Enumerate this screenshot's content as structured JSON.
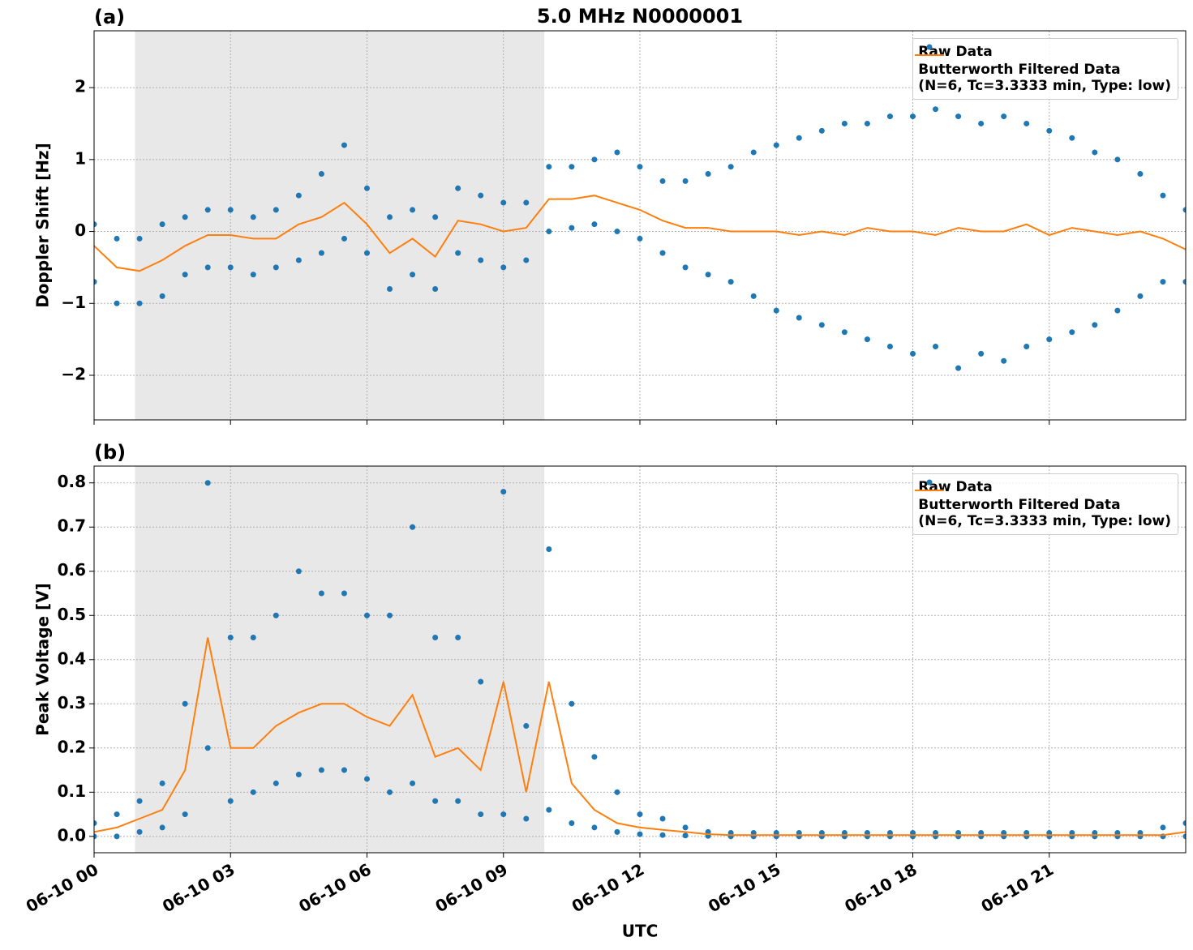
{
  "chart_data": [
    {
      "type": "line",
      "title": "5.0 MHz N0000001",
      "panel_label": "(a)",
      "ylabel": "Doppler Shift [Hz]",
      "xlim": [
        0,
        24
      ],
      "xticks": [
        0,
        3,
        6,
        9,
        12,
        15,
        18,
        21
      ],
      "ylim": [
        -2.62,
        2.79
      ],
      "yticks": [
        {
          "value": -2,
          "label": "−2"
        },
        {
          "value": -1,
          "label": "−1"
        },
        0,
        1,
        2
      ],
      "grid": true,
      "legend": "upper right",
      "shaded_span": [
        0.9,
        9.9
      ],
      "series": [
        {
          "name": "Raw Data",
          "color": "#1f77b4",
          "style": "points",
          "x": [
            0,
            0,
            0.5,
            0.5,
            1,
            1,
            1.5,
            1.5,
            2,
            2,
            2.5,
            2.5,
            3,
            3,
            3.5,
            3.5,
            4,
            4,
            4.5,
            4.5,
            5,
            5,
            5.5,
            5.5,
            6,
            6,
            6.5,
            6.5,
            7,
            7,
            7.5,
            7.5,
            8,
            8,
            8.5,
            8.5,
            9,
            9,
            9.5,
            9.5,
            10,
            10,
            10.5,
            10.5,
            11,
            11,
            11.5,
            11.5,
            12,
            12,
            12.5,
            12.5,
            13,
            13,
            13.5,
            13.5,
            14,
            14,
            14.5,
            14.5,
            15,
            15,
            15.5,
            15.5,
            16,
            16,
            16.5,
            16.5,
            17,
            17,
            17.5,
            17.5,
            18,
            18,
            18.5,
            18.5,
            19,
            19,
            19.5,
            19.5,
            20,
            20,
            20.5,
            20.5,
            21,
            21,
            21.5,
            21.5,
            22,
            22,
            22.5,
            22.5,
            23,
            23,
            23.5,
            23.5,
            24,
            24
          ],
          "values": [
            0.1,
            -0.7,
            -0.1,
            -1.0,
            -0.1,
            -1.0,
            0.1,
            -0.9,
            0.2,
            -0.6,
            0.3,
            -0.5,
            0.3,
            -0.5,
            0.2,
            -0.6,
            0.3,
            -0.5,
            0.5,
            -0.4,
            0.8,
            -0.3,
            1.2,
            -0.1,
            0.6,
            -0.3,
            0.2,
            -0.8,
            0.3,
            -0.6,
            0.2,
            -0.8,
            0.6,
            -0.3,
            0.5,
            -0.4,
            0.4,
            -0.5,
            0.4,
            -0.4,
            0.9,
            0,
            0.9,
            0.05,
            1.0,
            0.1,
            1.1,
            0,
            0.9,
            -0.1,
            0.7,
            -0.3,
            0.7,
            -0.5,
            0.8,
            -0.6,
            0.9,
            -0.7,
            1.1,
            -0.9,
            1.2,
            -1.1,
            1.3,
            -1.2,
            1.4,
            -1.3,
            1.5,
            -1.4,
            1.5,
            -1.5,
            1.6,
            -1.6,
            1.6,
            -1.7,
            1.7,
            -1.6,
            1.6,
            -1.9,
            1.5,
            -1.7,
            1.6,
            -1.8,
            1.5,
            -1.6,
            1.4,
            -1.5,
            1.3,
            -1.4,
            1.1,
            -1.3,
            1.0,
            -1.1,
            0.8,
            -0.9,
            0.5,
            -0.7,
            0.3,
            -0.7
          ]
        },
        {
          "name": "Butterworth Filtered Data\n(N=6, Tc=3.3333 min, Type: low)",
          "color": "#ff7f0e",
          "style": "line",
          "x": [
            0,
            0.5,
            1,
            1.5,
            2,
            2.5,
            3,
            3.5,
            4,
            4.5,
            5,
            5.5,
            6,
            6.5,
            7,
            7.5,
            8,
            8.5,
            9,
            9.5,
            10,
            10.5,
            11,
            11.5,
            12,
            12.5,
            13,
            13.5,
            14,
            14.5,
            15,
            15.5,
            16,
            16.5,
            17,
            17.5,
            18,
            18.5,
            19,
            19.5,
            20,
            20.5,
            21,
            21.5,
            22,
            22.5,
            23,
            23.5,
            24
          ],
          "values": [
            -0.2,
            -0.5,
            -0.55,
            -0.4,
            -0.2,
            -0.05,
            -0.05,
            -0.1,
            -0.1,
            0.1,
            0.2,
            0.4,
            0.1,
            -0.3,
            -0.1,
            -0.35,
            0.15,
            0.1,
            0,
            0.05,
            0.45,
            0.45,
            0.5,
            0.4,
            0.3,
            0.15,
            0.05,
            0.05,
            0,
            0,
            0,
            -0.05,
            0,
            -0.05,
            0.05,
            0,
            0,
            -0.05,
            0.05,
            0,
            0,
            0.1,
            -0.05,
            0.05,
            0,
            -0.05,
            0,
            -0.1,
            -0.25
          ]
        }
      ]
    },
    {
      "type": "line",
      "panel_label": "(b)",
      "ylabel": "Peak Voltage [V]",
      "xlabel": "UTC",
      "xlim": [
        0,
        24
      ],
      "xticks": [
        {
          "value": 0,
          "label": "06-10 00"
        },
        {
          "value": 3,
          "label": "06-10 03"
        },
        {
          "value": 6,
          "label": "06-10 06"
        },
        {
          "value": 9,
          "label": "06-10 09"
        },
        {
          "value": 12,
          "label": "06-10 12"
        },
        {
          "value": 15,
          "label": "06-10 15"
        },
        {
          "value": 18,
          "label": "06-10 18"
        },
        {
          "value": 21,
          "label": "06-10 21"
        }
      ],
      "ylim": [
        -0.037,
        0.838
      ],
      "yticks": [
        {
          "value": 0,
          "label": "0.0"
        },
        0.1,
        0.2,
        0.3,
        0.4,
        0.5,
        0.6,
        0.7,
        0.8
      ],
      "grid": true,
      "legend": "upper right",
      "shaded_span": [
        0.9,
        9.9
      ],
      "series": [
        {
          "name": "Raw Data",
          "color": "#1f77b4",
          "style": "points",
          "x": [
            0,
            0,
            0.5,
            0.5,
            1,
            1,
            1.5,
            1.5,
            2,
            2,
            2.5,
            2.5,
            3,
            3,
            3.5,
            3.5,
            4,
            4,
            4.5,
            4.5,
            5,
            5,
            5.5,
            5.5,
            6,
            6,
            6.5,
            6.5,
            7,
            7,
            7.5,
            7.5,
            8,
            8,
            8.5,
            8.5,
            9,
            9,
            9.5,
            9.5,
            10,
            10,
            10.5,
            10.5,
            11,
            11,
            11.5,
            11.5,
            12,
            12,
            12.5,
            12.5,
            13,
            13,
            13.5,
            13.5,
            14,
            14,
            14.5,
            14.5,
            15,
            15,
            15.5,
            15.5,
            16,
            16,
            16.5,
            16.5,
            17,
            17,
            17.5,
            17.5,
            18,
            18,
            18.5,
            18.5,
            19,
            19,
            19.5,
            19.5,
            20,
            20,
            20.5,
            20.5,
            21,
            21,
            21.5,
            21.5,
            22,
            22,
            22.5,
            22.5,
            23,
            23,
            23.5,
            23.5,
            24,
            24
          ],
          "values": [
            0.03,
            0,
            0.05,
            0,
            0.08,
            0.01,
            0.12,
            0.02,
            0.3,
            0.05,
            0.8,
            0.2,
            0.45,
            0.08,
            0.45,
            0.1,
            0.5,
            0.12,
            0.6,
            0.14,
            0.55,
            0.15,
            0.55,
            0.15,
            0.5,
            0.13,
            0.5,
            0.1,
            0.7,
            0.12,
            0.45,
            0.08,
            0.45,
            0.08,
            0.35,
            0.05,
            0.78,
            0.05,
            0.25,
            0.04,
            0.65,
            0.06,
            0.3,
            0.03,
            0.18,
            0.02,
            0.1,
            0.01,
            0.05,
            0.005,
            0.04,
            0.003,
            0.02,
            0.002,
            0.01,
            0.001,
            0.008,
            0,
            0.008,
            0,
            0.008,
            0,
            0.008,
            0,
            0.008,
            0,
            0.008,
            0,
            0.008,
            0,
            0.008,
            0,
            0.008,
            0,
            0.008,
            0,
            0.008,
            0,
            0.008,
            0,
            0.008,
            0,
            0.008,
            0,
            0.008,
            0,
            0.008,
            0,
            0.008,
            0,
            0.008,
            0,
            0.008,
            0,
            0.02,
            0,
            0.03,
            0
          ]
        },
        {
          "name": "Butterworth Filtered Data\n(N=6, Tc=3.3333 min, Type: low)",
          "color": "#ff7f0e",
          "style": "line",
          "x": [
            0,
            0.5,
            1,
            1.5,
            2,
            2.5,
            3,
            3.5,
            4,
            4.5,
            5,
            5.5,
            6,
            6.5,
            7,
            7.5,
            8,
            8.5,
            9,
            9.5,
            10,
            10.5,
            11,
            11.5,
            12,
            12.5,
            13,
            13.5,
            14,
            14.5,
            15,
            15.5,
            16,
            16.5,
            17,
            17.5,
            18,
            18.5,
            19,
            19.5,
            20,
            20.5,
            21,
            21.5,
            22,
            22.5,
            23,
            23.5,
            24
          ],
          "values": [
            0.01,
            0.02,
            0.04,
            0.06,
            0.15,
            0.45,
            0.2,
            0.2,
            0.25,
            0.28,
            0.3,
            0.3,
            0.27,
            0.25,
            0.32,
            0.18,
            0.2,
            0.15,
            0.35,
            0.1,
            0.35,
            0.12,
            0.06,
            0.03,
            0.02,
            0.015,
            0.01,
            0.005,
            0.003,
            0.003,
            0.003,
            0.003,
            0.003,
            0.003,
            0.003,
            0.003,
            0.003,
            0.003,
            0.003,
            0.003,
            0.003,
            0.003,
            0.003,
            0.003,
            0.003,
            0.003,
            0.003,
            0.003,
            0.01
          ]
        }
      ]
    }
  ]
}
